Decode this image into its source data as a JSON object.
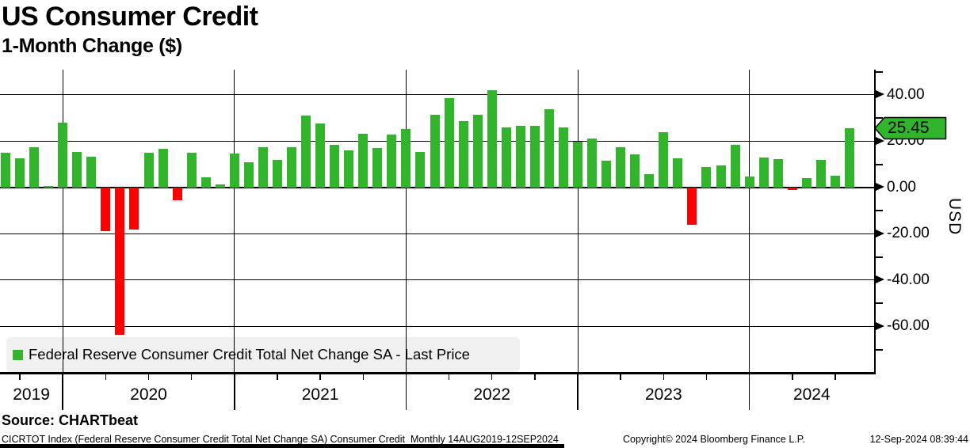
{
  "header": {
    "title": "US Consumer Credit",
    "subtitle": "1-Month Change ($)"
  },
  "legend": {
    "label": "Federal Reserve Consumer Credit Total Net Change SA - Last Price",
    "swatch_color": "#32b42d"
  },
  "footer": {
    "source": "Source: CHARTbeat",
    "description": "CICRTOT Index (Federal Reserve Consumer Credit Total Net Change SA) Consumer Credit  Monthly 14AUG2019-12SEP2024",
    "copyright": "Copyright© 2024 Bloomberg Finance L.P.",
    "timestamp": "12-Sep-2024 08:39:44"
  },
  "chart_data": {
    "type": "bar",
    "title": "US Consumer Credit",
    "subtitle": "1-Month Change ($)",
    "ylabel": "USD",
    "ylim": [
      -79.7,
      50.9
    ],
    "grid": true,
    "legend_position": "bottom-left",
    "yticks": [
      {
        "value": 40,
        "label": "40.00"
      },
      {
        "value": 20,
        "label": "20.00"
      },
      {
        "value": 0,
        "label": "0.00"
      },
      {
        "value": -20,
        "label": "-20.00"
      },
      {
        "value": -40,
        "label": "-40.00"
      },
      {
        "value": -60,
        "label": "-60.00"
      }
    ],
    "yticks_minor": [
      50,
      30,
      10,
      -10,
      -30,
      -50,
      -70
    ],
    "last_price": 25.45,
    "last_price_label": "25.45",
    "colors": {
      "positive": "#32b42d",
      "negative": "#fe0000",
      "last_price_badge": "#32b42d"
    },
    "x_years": [
      "2019",
      "2020",
      "2021",
      "2022",
      "2023",
      "2024"
    ],
    "x": [
      "2019-08",
      "2019-09",
      "2019-10",
      "2019-11",
      "2019-12",
      "2020-01",
      "2020-02",
      "2020-03",
      "2020-04",
      "2020-05",
      "2020-06",
      "2020-07",
      "2020-08",
      "2020-09",
      "2020-10",
      "2020-11",
      "2020-12",
      "2021-01",
      "2021-02",
      "2021-03",
      "2021-04",
      "2021-05",
      "2021-06",
      "2021-07",
      "2021-08",
      "2021-09",
      "2021-10",
      "2021-11",
      "2021-12",
      "2022-01",
      "2022-02",
      "2022-03",
      "2022-04",
      "2022-05",
      "2022-06",
      "2022-07",
      "2022-08",
      "2022-09",
      "2022-10",
      "2022-11",
      "2022-12",
      "2023-01",
      "2023-02",
      "2023-03",
      "2023-04",
      "2023-05",
      "2023-06",
      "2023-07",
      "2023-08",
      "2023-09",
      "2023-10",
      "2023-11",
      "2023-12",
      "2024-01",
      "2024-02",
      "2024-03",
      "2024-04",
      "2024-05",
      "2024-06",
      "2024-07"
    ],
    "values": [
      14.9,
      12.7,
      17.4,
      0.7,
      28.1,
      15.2,
      13.3,
      -19.0,
      -63.6,
      -18.1,
      15.1,
      16.8,
      -5.4,
      15.1,
      4.4,
      1.3,
      14.5,
      11.0,
      17.4,
      11.9,
      17.5,
      31.1,
      27.5,
      18.4,
      16.1,
      23.2,
      16.9,
      22.7,
      25.4,
      15.5,
      31.5,
      38.6,
      28.8,
      31.5,
      41.9,
      25.8,
      26.6,
      26.6,
      33.7,
      25.8,
      19.9,
      21.0,
      11.5,
      17.5,
      14.4,
      5.7,
      23.9,
      12.7,
      -16.1,
      8.7,
      9.5,
      18.4,
      4.9,
      13.1,
      12.1,
      -1.0,
      3.9,
      11.9,
      5.2,
      25.45
    ]
  }
}
